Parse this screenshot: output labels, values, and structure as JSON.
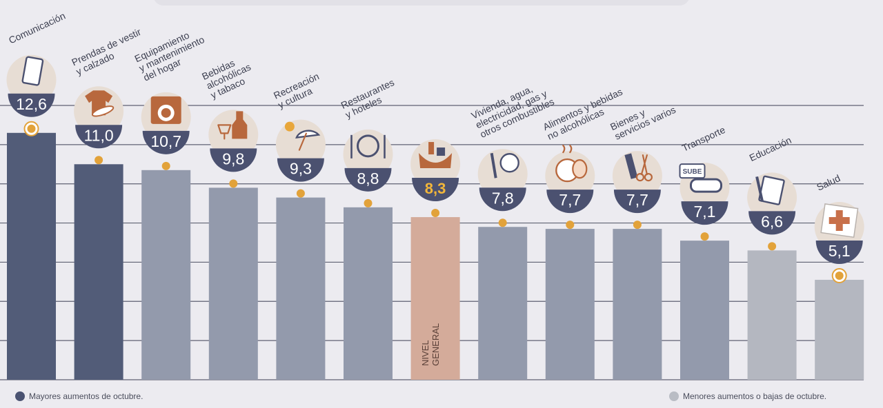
{
  "chart_data": {
    "type": "bar",
    "categories": [
      [
        "Comunicación"
      ],
      [
        "Prendas de vestir",
        "y calzado"
      ],
      [
        "Equipamiento",
        "y mantenimiento",
        "del hogar"
      ],
      [
        "Bebidas",
        "alcohólicas",
        "y tabaco"
      ],
      [
        "Recreación",
        "y cultura"
      ],
      [
        "Restaurantes",
        "y hoteles"
      ],
      [],
      [
        "Vivienda, agua,",
        "electricidad, gas y",
        "otros combustibles"
      ],
      [
        "Alimentos y bebidas",
        "no alcohólicas"
      ],
      [
        "Bienes y",
        "servicios varios"
      ],
      [
        "Transporte"
      ],
      [
        "Educación"
      ],
      [
        "Salud"
      ]
    ],
    "values": [
      12.6,
      11.0,
      10.7,
      9.8,
      9.3,
      8.8,
      8.3,
      7.8,
      7.7,
      7.7,
      7.1,
      6.6,
      5.1
    ],
    "value_labels": [
      "12,6",
      "11,0",
      "10,7",
      "9,8",
      "9,3",
      "8,8",
      "8,3",
      "7,8",
      "7,7",
      "7,7",
      "7,1",
      "6,6",
      "5,1"
    ],
    "groups": [
      "mayor",
      "mayor",
      "medio",
      "medio",
      "medio",
      "medio",
      "general",
      "medio",
      "medio",
      "medio",
      "medio",
      "menor",
      "menor"
    ],
    "icons": [
      "phone-icon",
      "shirt-icon",
      "washing-machine-icon",
      "drinks-icon",
      "umbrella-sun-icon",
      "cutlery-plate-icon",
      "shopping-bag-icon",
      "tools-bulb-icon",
      "food-bowl-icon",
      "comb-scissors-icon",
      "bus-card-icon",
      "notebook-pencil-icon",
      "first-aid-icon"
    ],
    "general_label": [
      "NIVEL",
      "GENERAL"
    ],
    "ylim": [
      0,
      14
    ],
    "grid": true,
    "xlabel": "",
    "ylabel": "",
    "colors": {
      "mayor": "#525c78",
      "medio": "#939aac",
      "menor": "#b4b7c0",
      "general": "#d4ab9a",
      "dot": "#e2a23a",
      "circle": "#4b5170",
      "icon": "#b8683d",
      "icon_bg": "#e7ddd4",
      "value_general": "#f2b63a"
    }
  },
  "legend": {
    "left": "Mayores aumentos de octubre.",
    "right": "Menores aumentos o bajas de octubre.",
    "left_color": "#4b5372",
    "right_color": "#b9bcc4"
  }
}
